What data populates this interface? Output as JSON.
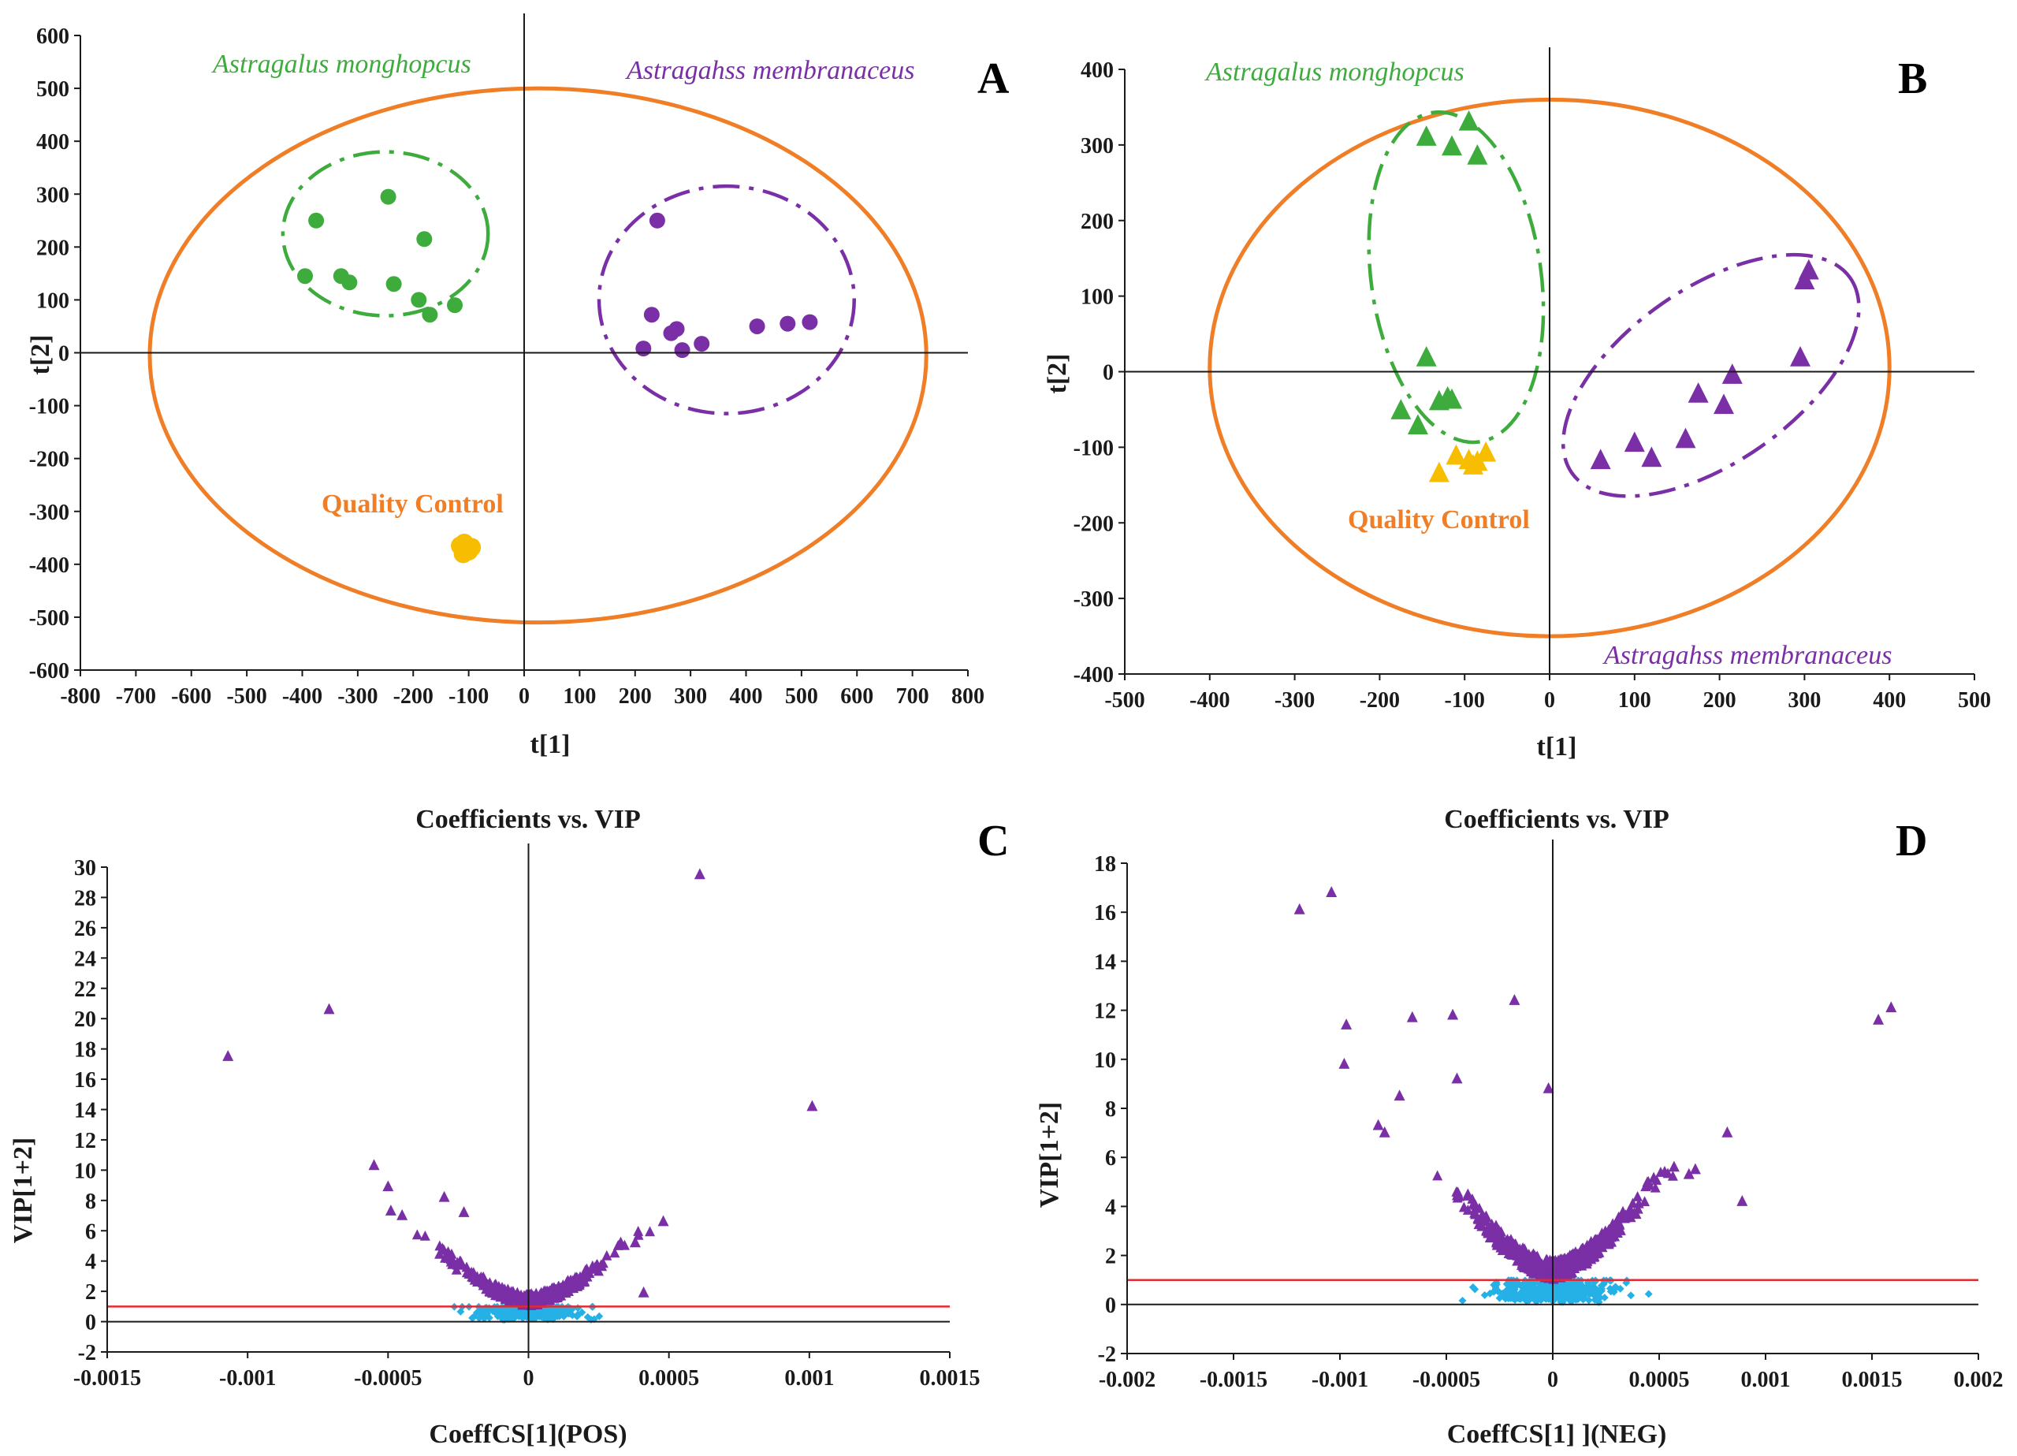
{
  "colors": {
    "green": "#3dac3d",
    "purple": "#7a2fa6",
    "orange": "#f07e26",
    "qc_yellow": "#f7bd00",
    "cyan": "#25b0e6",
    "threshold_red": "#e5292f",
    "axis": "#1a1a1a"
  },
  "chart_data": [
    {
      "panel": "A",
      "type": "scatter",
      "title": "",
      "xlabel": "t[1]",
      "ylabel": "t[2]",
      "xlim": [
        -800,
        800
      ],
      "ylim": [
        -600,
        600
      ],
      "xticks": [
        "-800",
        "-700",
        "-600",
        "-500",
        "-400",
        "-300",
        "-200",
        "-100",
        "0",
        "100",
        "200",
        "300",
        "400",
        "500",
        "600",
        "700",
        "800"
      ],
      "yticks": [
        "-600",
        "-500",
        "-400",
        "-300",
        "-200",
        "-100",
        "0",
        "100",
        "200",
        "300",
        "400",
        "500",
        "600"
      ],
      "marker": "circle",
      "group_labels": {
        "green": "Astragalus monghopcus",
        "purple": "Astragahss membranaceus",
        "qc": "Quality Control"
      },
      "ellipses": [
        {
          "group": "hotelling",
          "color": "orange",
          "cx": 25,
          "cy": -5,
          "rx": 700,
          "ry": 505
        },
        {
          "group": "green",
          "color": "green",
          "cx": -250,
          "cy": 225,
          "rx": 185,
          "ry": 155
        },
        {
          "group": "purple",
          "color": "purple",
          "cx": 365,
          "cy": 100,
          "rx": 230,
          "ry": 215
        }
      ],
      "series": [
        {
          "name": "Astragalus monghopcus",
          "color": "green",
          "points": [
            [
              -375,
              250
            ],
            [
              -395,
              145
            ],
            [
              -330,
              145
            ],
            [
              -315,
              133
            ],
            [
              -245,
              295
            ],
            [
              -235,
              130
            ],
            [
              -190,
              100
            ],
            [
              -180,
              215
            ],
            [
              -170,
              72
            ],
            [
              -125,
              90
            ]
          ]
        },
        {
          "name": "Astragahss membranaceus",
          "color": "purple",
          "points": [
            [
              240,
              250
            ],
            [
              230,
              72
            ],
            [
              265,
              37
            ],
            [
              275,
              45
            ],
            [
              215,
              8
            ],
            [
              285,
              5
            ],
            [
              320,
              17
            ],
            [
              420,
              50
            ],
            [
              475,
              55
            ],
            [
              515,
              58
            ]
          ]
        },
        {
          "name": "Quality Control",
          "color": "qc_yellow",
          "points": [
            [
              -115,
              -365
            ],
            [
              -105,
              -370
            ],
            [
              -110,
              -380
            ],
            [
              -95,
              -368
            ],
            [
              -100,
              -375
            ],
            [
              -108,
              -360
            ]
          ]
        }
      ]
    },
    {
      "panel": "B",
      "type": "scatter",
      "title": "",
      "xlabel": "t[1]",
      "ylabel": "t[2]",
      "xlim": [
        -500,
        500
      ],
      "ylim": [
        -400,
        400
      ],
      "xticks": [
        "-500",
        "-400",
        "-300",
        "-200",
        "-100",
        "0",
        "100",
        "200",
        "300",
        "400",
        "500"
      ],
      "yticks": [
        "-400",
        "-300",
        "-200",
        "-100",
        "0",
        "100",
        "200",
        "300",
        "400"
      ],
      "marker": "triangle",
      "group_labels": {
        "green": "Astragalus monghopcus",
        "purple": "Astragahss membranaceus",
        "qc": "Quality Control"
      },
      "ellipses": [
        {
          "group": "hotelling",
          "color": "orange",
          "cx": 0,
          "cy": 5,
          "rx": 400,
          "ry": 355,
          "rot": 0
        },
        {
          "group": "green",
          "color": "green",
          "cx": -110,
          "cy": 125,
          "rx": 100,
          "ry": 220,
          "rot": -8
        },
        {
          "group": "purple",
          "color": "purple",
          "cx": 190,
          "cy": -5,
          "rx": 200,
          "ry": 115,
          "rot": -35
        }
      ],
      "series": [
        {
          "name": "Astragalus monghopcus",
          "color": "green",
          "points": [
            [
              -145,
              310
            ],
            [
              -115,
              297
            ],
            [
              -95,
              330
            ],
            [
              -85,
              285
            ],
            [
              -145,
              18
            ],
            [
              -175,
              -52
            ],
            [
              -155,
              -72
            ],
            [
              -130,
              -40
            ],
            [
              -120,
              -35
            ],
            [
              -115,
              -38
            ]
          ]
        },
        {
          "name": "Astragahss membranaceus",
          "color": "purple",
          "points": [
            [
              60,
              -118
            ],
            [
              100,
              -95
            ],
            [
              120,
              -115
            ],
            [
              160,
              -90
            ],
            [
              175,
              -30
            ],
            [
              205,
              -45
            ],
            [
              215,
              -5
            ],
            [
              295,
              18
            ],
            [
              300,
              120
            ],
            [
              305,
              133
            ]
          ]
        },
        {
          "name": "Quality Control",
          "color": "qc_yellow",
          "points": [
            [
              -130,
              -135
            ],
            [
              -110,
              -112
            ],
            [
              -95,
              -118
            ],
            [
              -90,
              -125
            ],
            [
              -85,
              -120
            ],
            [
              -75,
              -108
            ]
          ]
        }
      ]
    },
    {
      "panel": "C",
      "type": "scatter",
      "title": "Coefficients vs. VIP",
      "xlabel": "CoeffCS[1](POS)",
      "ylabel": "VIP[1+2]",
      "xlim": [
        -0.0015,
        0.0015
      ],
      "ylim": [
        -2,
        30
      ],
      "xticks": [
        "-0.0015",
        "-0.001",
        "-0.0005",
        "0",
        "0.0005",
        "0.001",
        "0.0015"
      ],
      "yticks": [
        "-2",
        "0",
        "2",
        "4",
        "6",
        "8",
        "10",
        "12",
        "14",
        "16",
        "18",
        "20",
        "22",
        "24",
        "26",
        "28",
        "30"
      ],
      "threshold_vip": 1,
      "outliers_purple": [
        [
          -0.00107,
          17.5
        ],
        [
          -0.00071,
          20.6
        ],
        [
          0.00061,
          29.5
        ],
        [
          0.00101,
          14.2
        ],
        [
          -0.00055,
          10.3
        ],
        [
          -0.0005,
          8.9
        ],
        [
          -0.00049,
          7.3
        ],
        [
          -0.00045,
          7.0
        ],
        [
          -0.0003,
          8.2
        ],
        [
          -0.00023,
          7.2
        ],
        [
          0.00048,
          6.6
        ],
        [
          0.00038,
          5.2
        ],
        [
          0.00041,
          1.9
        ]
      ],
      "noise_seed": 11,
      "noise_sigma": 0.00014,
      "noise_count_purple": 320,
      "noise_count_cyan": 260,
      "vip_scale_purple": 5.5,
      "vip_scale_cyan": 0.9
    },
    {
      "panel": "D",
      "type": "scatter",
      "title": "Coefficients vs. VIP",
      "xlabel": "CoeffCS[1] ](NEG)",
      "ylabel": "VIP[1+2]",
      "xlim": [
        -0.002,
        0.002
      ],
      "ylim": [
        -2,
        18
      ],
      "xticks": [
        "-0.002",
        "-0.0015",
        "-0.001",
        "-0.0005",
        "0",
        "0.0005",
        "0.001",
        "0.0015",
        "0.002"
      ],
      "yticks": [
        "-2",
        "0",
        "2",
        "4",
        "6",
        "8",
        "10",
        "12",
        "14",
        "16",
        "18"
      ],
      "threshold_vip": 1,
      "outliers_purple": [
        [
          -0.00119,
          16.1
        ],
        [
          -0.00104,
          16.8
        ],
        [
          -0.00097,
          11.4
        ],
        [
          -0.00098,
          9.8
        ],
        [
          -0.00066,
          11.7
        ],
        [
          -0.00047,
          11.8
        ],
        [
          -0.00018,
          12.4
        ],
        [
          -0.00045,
          9.2
        ],
        [
          -2e-05,
          8.8
        ],
        [
          -0.00082,
          7.3
        ],
        [
          -0.00079,
          7.0
        ],
        [
          -0.00072,
          8.5
        ],
        [
          0.00153,
          11.6
        ],
        [
          0.00159,
          12.1
        ],
        [
          0.00082,
          7.0
        ],
        [
          0.00089,
          4.2
        ],
        [
          0.00067,
          5.5
        ],
        [
          0.00064,
          5.3
        ],
        [
          0.00057,
          5.6
        ]
      ],
      "noise_seed": 29,
      "noise_sigma": 0.0002,
      "noise_count_purple": 520,
      "noise_count_cyan": 380,
      "vip_scale_purple": 5.0,
      "vip_scale_cyan": 0.9
    }
  ]
}
